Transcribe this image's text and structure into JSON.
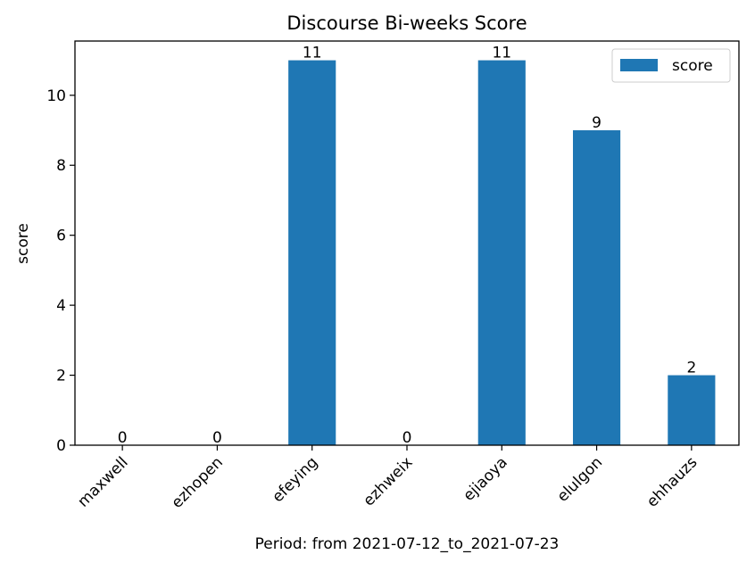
{
  "chart_data": {
    "type": "bar",
    "title": "Discourse Bi-weeks Score",
    "xlabel": "Period: from 2021-07-12_to_2021-07-23",
    "ylabel": "score",
    "categories": [
      "maxwell",
      "ezhopen",
      "efeying",
      "ezhweix",
      "ejiaoya",
      "elulgon",
      "ehhauzs"
    ],
    "series": [
      {
        "name": "score",
        "values": [
          0,
          0,
          11,
          0,
          11,
          9,
          2
        ],
        "color": "#1f77b4"
      }
    ],
    "data_labels": [
      "0",
      "0",
      "11",
      "0",
      "11",
      "9",
      "2"
    ],
    "ylim": [
      0,
      11.55
    ],
    "yticks": [
      0,
      2,
      4,
      6,
      8,
      10
    ],
    "xtick_rotation_deg": 45,
    "grid": false,
    "legend_position": "top-right"
  }
}
